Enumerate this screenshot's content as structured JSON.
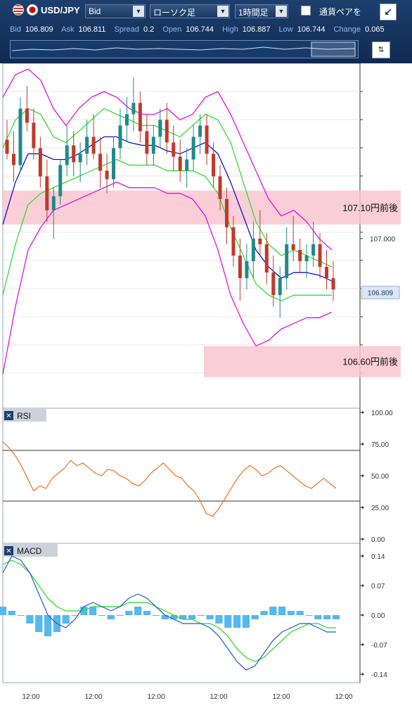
{
  "toolbar": {
    "symbol": "USD/JPY",
    "price_type": "Bid",
    "chart_type": "ローソク足",
    "timeframe": "1時間足",
    "pair_checkbox_label": "通貨ペアを",
    "expand_icon": "expand-arrow-icon",
    "zoom_icon": "zoom-toggle-icon"
  },
  "quotes": {
    "bid_label": "Bid",
    "bid": "106.809",
    "ask_label": "Ask",
    "ask": "106.811",
    "spread_label": "Spread",
    "spread": "0.2",
    "open_label": "Open",
    "open": "106.744",
    "high_label": "High",
    "high": "106.887",
    "low_label": "Low",
    "low": "106.744",
    "change_label": "Change",
    "change": "0.065"
  },
  "colors": {
    "bb_outer": "#e000e0",
    "bb_inner": "#22dd22",
    "middle": "#0000cc",
    "candle_up": "#1f8a8a",
    "candle_down": "#c0392b",
    "zone": "#f9c6cf",
    "rsi": "#e8731f",
    "macd": "#1f5bd6",
    "signal": "#22dd22",
    "histogram": "#55b8ee"
  },
  "chart_data": [
    {
      "type": "candlestick",
      "title": "",
      "series_names": [],
      "ylim": [
        106.4,
        107.62
      ],
      "current_price": "106.809",
      "y_label_107": "107.000",
      "zones": [
        {
          "label": "107.10円前後",
          "low": 107.05,
          "high": 107.17
        },
        {
          "label": "106.60円前後",
          "low": 106.51,
          "high": 106.62
        }
      ],
      "x_ticks": [
        "12:00",
        "12:00",
        "12:00",
        "12:00",
        "12:00",
        "12:00"
      ],
      "candles": [
        [
          107.35,
          107.42,
          107.28,
          107.3
        ],
        [
          107.3,
          107.38,
          107.2,
          107.26
        ],
        [
          107.26,
          107.5,
          107.24,
          107.46
        ],
        [
          107.46,
          107.54,
          107.38,
          107.41
        ],
        [
          107.41,
          107.46,
          107.28,
          107.32
        ],
        [
          107.32,
          107.36,
          107.18,
          107.22
        ],
        [
          107.22,
          107.28,
          107.06,
          107.1
        ],
        [
          107.1,
          107.18,
          107.0,
          107.15
        ],
        [
          107.15,
          107.28,
          107.12,
          107.26
        ],
        [
          107.26,
          107.4,
          107.22,
          107.33
        ],
        [
          107.33,
          107.38,
          107.22,
          107.27
        ],
        [
          107.27,
          107.34,
          107.2,
          107.3
        ],
        [
          107.3,
          107.42,
          107.26,
          107.36
        ],
        [
          107.36,
          107.44,
          107.28,
          107.3
        ],
        [
          107.3,
          107.36,
          107.18,
          107.24
        ],
        [
          107.24,
          107.3,
          107.16,
          107.21
        ],
        [
          107.21,
          107.36,
          107.18,
          107.32
        ],
        [
          107.32,
          107.46,
          107.28,
          107.4
        ],
        [
          107.4,
          107.5,
          107.34,
          107.44
        ],
        [
          107.44,
          107.57,
          107.38,
          107.48
        ],
        [
          107.48,
          107.52,
          107.34,
          107.38
        ],
        [
          107.38,
          107.44,
          107.26,
          107.3
        ],
        [
          107.3,
          107.4,
          107.26,
          107.36
        ],
        [
          107.36,
          107.46,
          107.32,
          107.42
        ],
        [
          107.42,
          107.48,
          107.3,
          107.34
        ],
        [
          107.34,
          107.4,
          107.24,
          107.29
        ],
        [
          107.29,
          107.35,
          107.2,
          107.24
        ],
        [
          107.24,
          107.32,
          107.18,
          107.28
        ],
        [
          107.28,
          107.4,
          107.24,
          107.36
        ],
        [
          107.36,
          107.44,
          107.3,
          107.4
        ],
        [
          107.4,
          107.44,
          107.26,
          107.3
        ],
        [
          107.3,
          107.34,
          107.18,
          107.22
        ],
        [
          107.22,
          107.26,
          107.1,
          107.14
        ],
        [
          107.14,
          107.18,
          106.98,
          107.04
        ],
        [
          107.04,
          107.08,
          106.9,
          106.94
        ],
        [
          106.94,
          107.0,
          106.78,
          106.86
        ],
        [
          106.86,
          106.98,
          106.82,
          106.92
        ],
        [
          106.92,
          107.06,
          106.86,
          107.0
        ],
        [
          107.0,
          107.1,
          106.94,
          106.98
        ],
        [
          106.98,
          107.02,
          106.84,
          106.88
        ],
        [
          106.88,
          106.94,
          106.76,
          106.8
        ],
        [
          106.8,
          106.9,
          106.72,
          106.86
        ],
        [
          106.86,
          107.04,
          106.82,
          106.98
        ],
        [
          106.98,
          107.08,
          106.92,
          106.96
        ],
        [
          106.96,
          107.0,
          106.88,
          106.92
        ],
        [
          106.92,
          106.98,
          106.86,
          106.94
        ],
        [
          106.94,
          107.06,
          106.9,
          106.98
        ],
        [
          106.98,
          107.02,
          106.86,
          106.9
        ],
        [
          106.9,
          106.96,
          106.82,
          106.86
        ],
        [
          106.86,
          106.92,
          106.78,
          106.82
        ]
      ],
      "bb_upper": [
        107.5,
        107.58,
        107.6,
        107.56,
        107.46,
        107.4,
        107.46,
        107.5,
        107.52,
        107.5,
        107.46,
        107.44,
        107.44,
        107.46,
        107.42,
        107.44,
        107.5,
        107.52,
        107.44,
        107.34,
        107.24,
        107.14,
        107.08,
        107.1,
        107.06,
        107.0,
        106.96
      ],
      "bb_inner_upper": [
        107.32,
        107.42,
        107.46,
        107.44,
        107.36,
        107.34,
        107.38,
        107.42,
        107.46,
        107.44,
        107.42,
        107.4,
        107.4,
        107.38,
        107.36,
        107.4,
        107.44,
        107.42,
        107.34,
        107.2,
        107.06,
        106.98,
        106.94,
        106.96,
        106.94,
        106.92,
        106.9
      ],
      "middle": [
        107.05,
        107.2,
        107.3,
        107.3,
        107.28,
        107.28,
        107.3,
        107.33,
        107.36,
        107.36,
        107.34,
        107.33,
        107.33,
        107.31,
        107.3,
        107.32,
        107.34,
        107.3,
        107.2,
        107.08,
        106.96,
        106.9,
        106.86,
        106.88,
        106.88,
        106.87,
        106.85
      ],
      "bb_inner_lower": [
        106.8,
        106.98,
        107.12,
        107.16,
        107.18,
        107.2,
        107.22,
        107.24,
        107.26,
        107.28,
        107.26,
        107.26,
        107.26,
        107.24,
        107.24,
        107.24,
        107.22,
        107.16,
        107.04,
        106.94,
        106.84,
        106.8,
        106.78,
        106.8,
        106.8,
        106.8,
        106.8
      ],
      "bb_lower": [
        106.52,
        106.76,
        106.96,
        107.04,
        107.1,
        107.12,
        107.14,
        107.16,
        107.18,
        107.2,
        107.18,
        107.18,
        107.18,
        107.16,
        107.16,
        107.14,
        107.08,
        106.96,
        106.8,
        106.7,
        106.62,
        106.64,
        106.68,
        106.7,
        106.72,
        106.72,
        106.74
      ]
    },
    {
      "type": "line",
      "title": "RSI",
      "series_names": [],
      "ylim": [
        0,
        100
      ],
      "y_ticks": [
        "100.00",
        "75.00",
        "50.00",
        "25.00",
        "0.00"
      ],
      "levels": [
        70,
        30
      ],
      "values": [
        77,
        72,
        66,
        58,
        48,
        38,
        42,
        40,
        48,
        52,
        56,
        62,
        58,
        60,
        56,
        52,
        50,
        55,
        54,
        50,
        48,
        44,
        42,
        46,
        52,
        56,
        60,
        55,
        50,
        48,
        42,
        38,
        30,
        20,
        18,
        24,
        32,
        40,
        48,
        54,
        58,
        55,
        50,
        52,
        56,
        58,
        54,
        50,
        46,
        42,
        40,
        44,
        48,
        44,
        40
      ]
    },
    {
      "type": "line",
      "title": "MACD",
      "series_names": [],
      "ylim": [
        -0.16,
        0.17
      ],
      "y_ticks": [
        "0.14",
        "0.07",
        "0.00",
        "-0.07",
        "-0.14"
      ],
      "macd": [
        0.1,
        0.14,
        0.13,
        0.1,
        0.05,
        0.0,
        -0.02,
        -0.03,
        -0.01,
        0.02,
        0.03,
        0.02,
        0.01,
        0.02,
        0.04,
        0.05,
        0.04,
        0.02,
        0.0,
        -0.01,
        -0.02,
        -0.02,
        -0.02,
        -0.03,
        -0.05,
        -0.08,
        -0.11,
        -0.13,
        -0.12,
        -0.09,
        -0.06,
        -0.04,
        -0.03,
        -0.02,
        -0.02,
        -0.03,
        -0.04,
        -0.04
      ],
      "signal": [
        0.12,
        0.13,
        0.12,
        0.1,
        0.07,
        0.04,
        0.02,
        0.01,
        0.01,
        0.01,
        0.02,
        0.02,
        0.02,
        0.02,
        0.03,
        0.03,
        0.03,
        0.02,
        0.01,
        0.0,
        -0.01,
        -0.01,
        -0.02,
        -0.02,
        -0.03,
        -0.05,
        -0.08,
        -0.1,
        -0.11,
        -0.1,
        -0.08,
        -0.06,
        -0.04,
        -0.03,
        -0.02,
        -0.02,
        -0.03,
        -0.03
      ],
      "histogram": [
        0.02,
        0.01,
        0.0,
        -0.02,
        -0.04,
        -0.05,
        -0.04,
        -0.02,
        0.0,
        0.02,
        0.02,
        0.0,
        -0.01,
        0.0,
        0.01,
        0.02,
        0.01,
        0.0,
        -0.01,
        -0.01,
        -0.01,
        -0.01,
        0.0,
        -0.01,
        -0.02,
        -0.03,
        -0.03,
        -0.03,
        -0.01,
        0.01,
        0.02,
        0.02,
        0.01,
        0.01,
        0.0,
        -0.01,
        -0.01,
        -0.01
      ]
    }
  ]
}
